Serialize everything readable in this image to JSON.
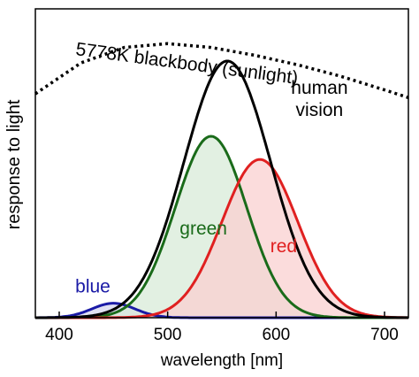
{
  "chart_data": {
    "type": "area",
    "xlabel": "wavelength [nm]",
    "ylabel": "response to light",
    "xlim": [
      378,
      722
    ],
    "ylim": [
      0,
      1.6
    ],
    "xticks": [
      400,
      500,
      600,
      700
    ],
    "grid": false,
    "legend": "none",
    "blackbody": {
      "name": "5778K blackbody (sunlight)",
      "color": "#000000",
      "style": "dotted",
      "points": [
        [
          378,
          1.16
        ],
        [
          420,
          1.32
        ],
        [
          460,
          1.4
        ],
        [
          500,
          1.42
        ],
        [
          540,
          1.4
        ],
        [
          580,
          1.36
        ],
        [
          620,
          1.31
        ],
        [
          660,
          1.25
        ],
        [
          700,
          1.18
        ],
        [
          722,
          1.14
        ]
      ]
    },
    "series": [
      {
        "name": "blue",
        "color": "#1a1aa6",
        "fill": "#d5d5ee",
        "peak_x": 450,
        "peak_y": 0.075,
        "width": 20,
        "label_x": 431,
        "label_y": 0.13
      },
      {
        "name": "green",
        "color": "#1a6b1a",
        "fill": "#d8ebd8",
        "peak_x": 540,
        "peak_y": 0.94,
        "width": 33,
        "label_x": 533,
        "label_y": 0.43
      },
      {
        "name": "red",
        "color": "#e02020",
        "fill": "#f9d0d0",
        "peak_x": 585,
        "peak_y": 0.82,
        "width": 35,
        "label_x": 607,
        "label_y": 0.34
      },
      {
        "name": "human vision",
        "color": "#000000",
        "fill": "none",
        "peak_x": 555,
        "peak_y": 1.33,
        "width": 40,
        "label_lines": [
          "human",
          "vision"
        ],
        "label_x": 640,
        "label_y": 1.16
      }
    ]
  }
}
